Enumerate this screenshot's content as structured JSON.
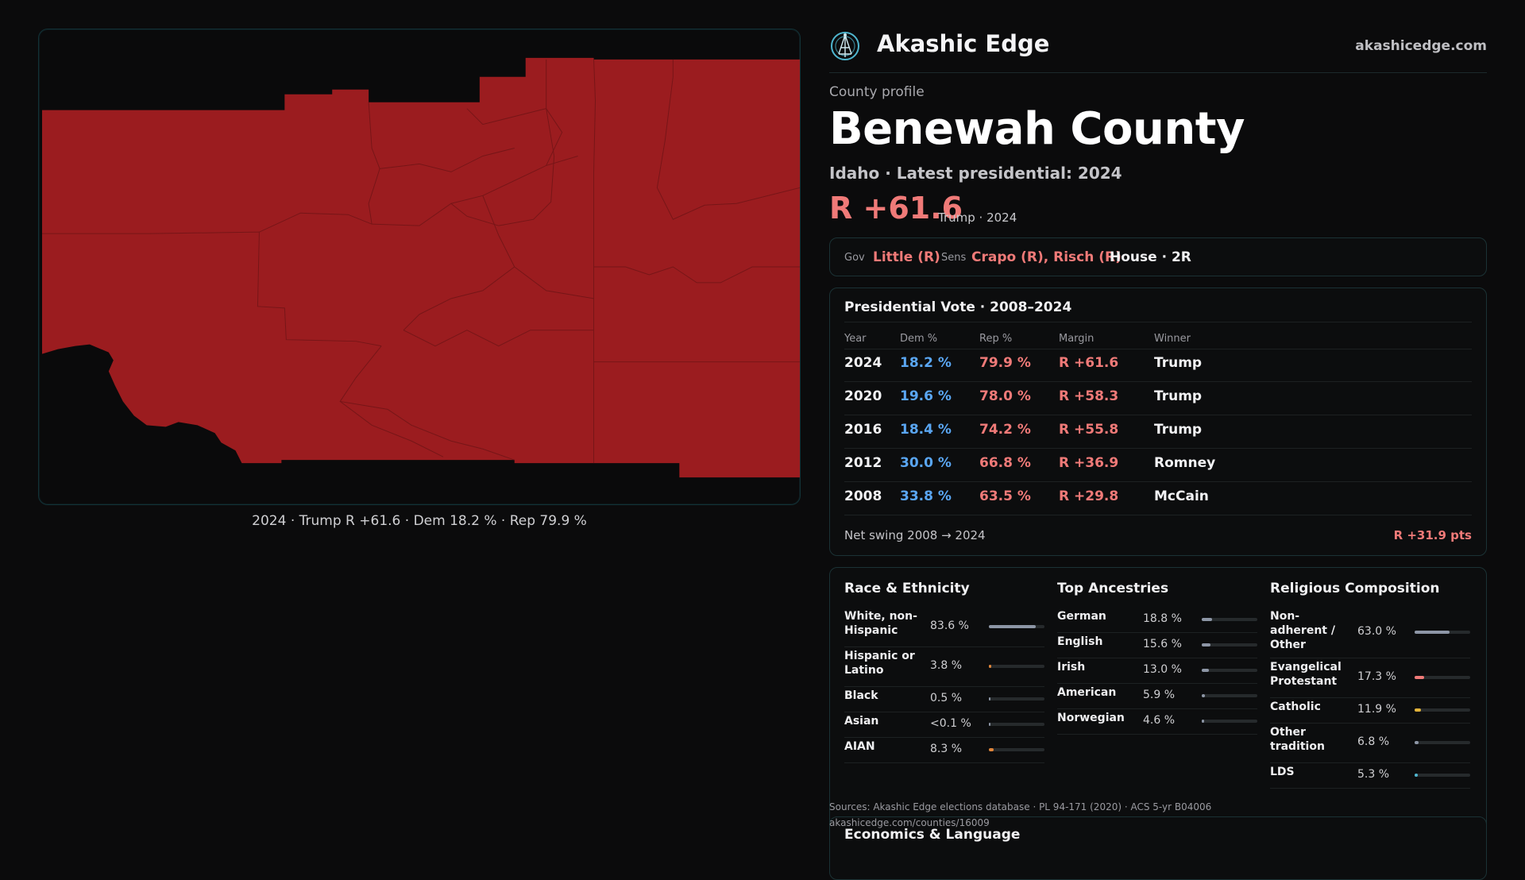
{
  "map": {
    "fill_color": "#9b1c1f",
    "caption": "2024 · Trump R +61.6 · Dem 18.2 % · Rep 79.9 %"
  },
  "brand": {
    "name": "Akashic Edge",
    "site": "akashicedge.com",
    "logo_icon": "globe-network-icon"
  },
  "county": {
    "eyebrow": "County profile",
    "name": "Benewah County",
    "subtitle": "Idaho · Latest presidential: 2024",
    "margin": "R +61.6",
    "margin_note": "Trump · 2024"
  },
  "officials": {
    "gov_key": "Gov",
    "gov": "Little (R)",
    "sens_key": "Sens",
    "sens": "Crapo (R), Risch (R)",
    "house": "House · 2R"
  },
  "presidential": {
    "title": "Presidential Vote · 2008–2024",
    "headers": [
      "Year",
      "Dem %",
      "Rep %",
      "Margin",
      "Winner"
    ],
    "rows": [
      {
        "year": "2024",
        "dem": "18.2 %",
        "rep": "79.9 %",
        "margin": "R +61.6",
        "winner": "Trump"
      },
      {
        "year": "2020",
        "dem": "19.6 %",
        "rep": "78.0 %",
        "margin": "R +58.3",
        "winner": "Trump"
      },
      {
        "year": "2016",
        "dem": "18.4 %",
        "rep": "74.2 %",
        "margin": "R +55.8",
        "winner": "Trump"
      },
      {
        "year": "2012",
        "dem": "30.0 %",
        "rep": "66.8 %",
        "margin": "R +36.9",
        "winner": "Romney"
      },
      {
        "year": "2008",
        "dem": "33.8 %",
        "rep": "63.5 %",
        "margin": "R +29.8",
        "winner": "McCain"
      }
    ],
    "swing_label": "Net swing 2008 → 2024",
    "swing_value": "R +31.9 pts"
  },
  "demographics": {
    "race": {
      "title": "Race & Ethnicity",
      "items": [
        {
          "label": "White, non-Hispanic",
          "value": "83.6 %",
          "pct": 83.6,
          "color": "#8d96a6"
        },
        {
          "label": "Hispanic or Latino",
          "value": "3.8 %",
          "pct": 3.8,
          "color": "#e0853a"
        },
        {
          "label": "Black",
          "value": "0.5 %",
          "pct": 0.5,
          "color": "#8d96a6"
        },
        {
          "label": "Asian",
          "value": "<0.1 %",
          "pct": 0.1,
          "color": "#8d96a6"
        },
        {
          "label": "AIAN",
          "value": "8.3 %",
          "pct": 8.3,
          "color": "#e0853a"
        }
      ]
    },
    "ancestry": {
      "title": "Top Ancestries",
      "items": [
        {
          "label": "German",
          "value": "18.8 %",
          "pct": 18.8,
          "color": "#8d96a6"
        },
        {
          "label": "English",
          "value": "15.6 %",
          "pct": 15.6,
          "color": "#8d96a6"
        },
        {
          "label": "Irish",
          "value": "13.0 %",
          "pct": 13.0,
          "color": "#8d96a6"
        },
        {
          "label": "American",
          "value": "5.9 %",
          "pct": 5.9,
          "color": "#8d96a6"
        },
        {
          "label": "Norwegian",
          "value": "4.6 %",
          "pct": 4.6,
          "color": "#8d96a6"
        }
      ]
    },
    "religion": {
      "title": "Religious Composition",
      "items": [
        {
          "label": "Non-adherent / Other",
          "value": "63.0 %",
          "pct": 63.0,
          "color": "#8d96a6"
        },
        {
          "label": "Evangelical Protestant",
          "value": "17.3 %",
          "pct": 17.3,
          "color": "#f07a78"
        },
        {
          "label": "Catholic",
          "value": "11.9 %",
          "pct": 11.9,
          "color": "#e2b33a"
        },
        {
          "label": "Other tradition",
          "value": "6.8 %",
          "pct": 6.8,
          "color": "#8d96a6"
        },
        {
          "label": "LDS",
          "value": "5.3 %",
          "pct": 5.3,
          "color": "#4fb6cf"
        }
      ]
    }
  },
  "sources": {
    "line1": "Sources: Akashic Edge elections database · PL 94-171 (2020) · ACS 5-yr B04006",
    "line2": "akashicedge.com/counties/16009"
  },
  "economics": {
    "title": "Economics & Language"
  }
}
